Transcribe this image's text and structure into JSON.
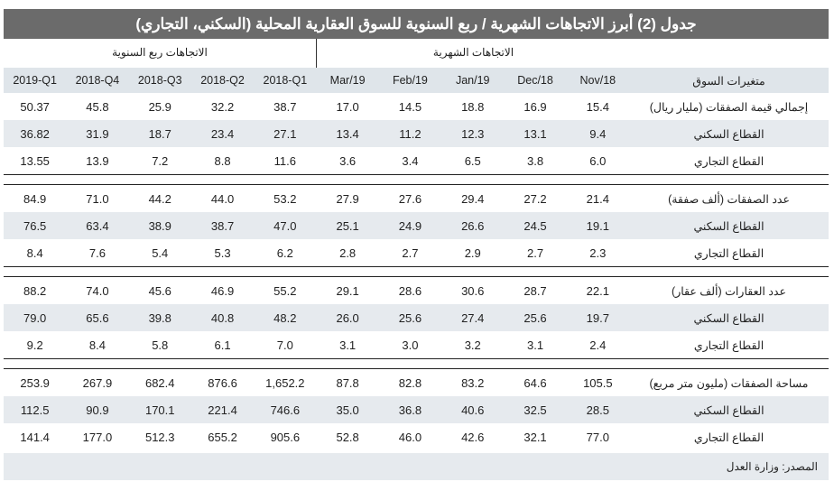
{
  "title": "جدول (2) أبرز الاتجاهات الشهرية / ربع السنوية للسوق العقارية المحلية (السكني، التجاري)",
  "group_quarterly": "الاتجاهات ربع السنوية",
  "group_monthly": "الاتجاهات الشهرية",
  "columns": [
    "2019-Q1",
    "2018-Q4",
    "2018-Q3",
    "2018-Q2",
    "2018-Q1",
    "Mar/19",
    "Feb/19",
    "Jan/19",
    "Dec/18",
    "Nov/18"
  ],
  "label_header": "متغيرات السوق",
  "groups": [
    {
      "rows": [
        {
          "label": "إجمالي قيمة الصفقات (مليار ريال)",
          "values": [
            "50.37",
            "45.8",
            "25.9",
            "32.2",
            "38.7",
            "17.0",
            "14.5",
            "18.8",
            "16.9",
            "15.4"
          ]
        },
        {
          "label": "القطاع السكني",
          "values": [
            "36.82",
            "31.9",
            "18.7",
            "23.4",
            "27.1",
            "13.4",
            "11.2",
            "12.3",
            "13.1",
            "9.4"
          ]
        },
        {
          "label": "القطاع التجاري",
          "values": [
            "13.55",
            "13.9",
            "7.2",
            "8.8",
            "11.6",
            "3.6",
            "3.4",
            "6.5",
            "3.8",
            "6.0"
          ]
        }
      ]
    },
    {
      "rows": [
        {
          "label": "عدد الصفقات (ألف صفقة)",
          "values": [
            "84.9",
            "71.0",
            "44.2",
            "44.0",
            "53.2",
            "27.9",
            "27.6",
            "29.4",
            "27.2",
            "21.4"
          ]
        },
        {
          "label": "القطاع السكني",
          "values": [
            "76.5",
            "63.4",
            "38.9",
            "38.7",
            "47.0",
            "25.1",
            "24.9",
            "26.6",
            "24.5",
            "19.1"
          ]
        },
        {
          "label": "القطاع التجاري",
          "values": [
            "8.4",
            "7.6",
            "5.4",
            "5.3",
            "6.2",
            "2.8",
            "2.7",
            "2.9",
            "2.7",
            "2.3"
          ]
        }
      ]
    },
    {
      "rows": [
        {
          "label": "عدد العقارات (ألف عقار)",
          "values": [
            "88.2",
            "74.0",
            "45.6",
            "46.9",
            "55.2",
            "29.1",
            "28.6",
            "30.6",
            "28.7",
            "22.1"
          ]
        },
        {
          "label": "القطاع السكني",
          "values": [
            "79.0",
            "65.6",
            "39.8",
            "40.8",
            "48.2",
            "26.0",
            "25.6",
            "27.4",
            "25.6",
            "19.7"
          ]
        },
        {
          "label": "القطاع التجاري",
          "values": [
            "9.2",
            "8.4",
            "5.8",
            "6.1",
            "7.0",
            "3.1",
            "3.0",
            "3.2",
            "3.1",
            "2.4"
          ]
        }
      ]
    },
    {
      "rows": [
        {
          "label": "مساحة الصفقات (مليون متر مربع)",
          "values": [
            "253.9",
            "267.9",
            "682.4",
            "876.6",
            "1,652.2",
            "87.8",
            "82.8",
            "83.2",
            "64.6",
            "105.5"
          ]
        },
        {
          "label": "القطاع السكني",
          "values": [
            "112.5",
            "90.9",
            "170.1",
            "221.4",
            "746.6",
            "35.0",
            "36.8",
            "40.6",
            "32.5",
            "28.5"
          ]
        },
        {
          "label": "القطاع التجاري",
          "values": [
            "141.4",
            "177.0",
            "512.3",
            "655.2",
            "905.6",
            "52.8",
            "46.0",
            "42.6",
            "32.1",
            "77.0"
          ]
        }
      ]
    }
  ],
  "source": "المصدر: وزارة العدل"
}
